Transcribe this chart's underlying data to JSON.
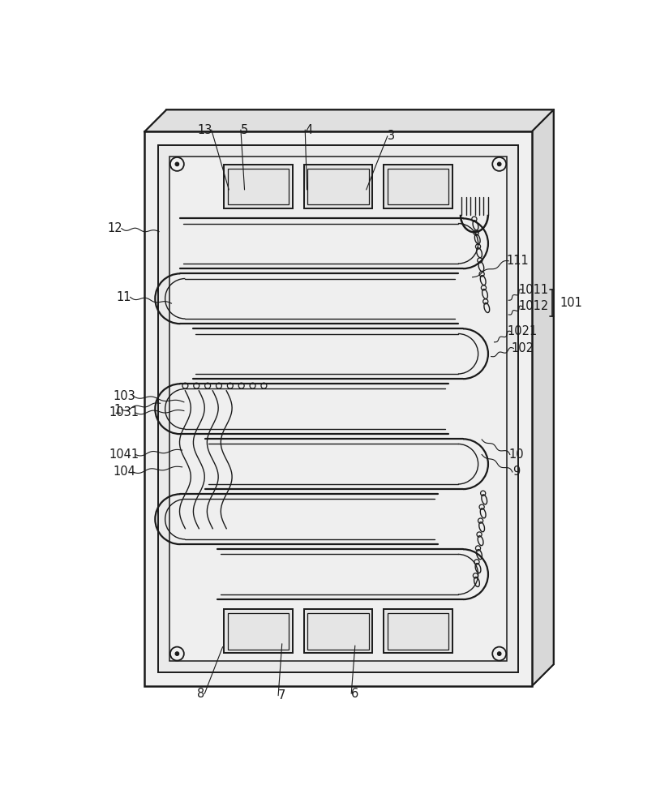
{
  "bg_color": "#ffffff",
  "lc": "#1a1a1a",
  "plate_face": "#f0f0f0",
  "plate_side_right": "#d0d0d0",
  "plate_side_top": "#e0e0e0",
  "slot_fill": "#e2e2e2",
  "annotations": [
    [
      "1",
      52,
      500,
      120,
      490,
      true
    ],
    [
      "3",
      490,
      62,
      450,
      148,
      false
    ],
    [
      "4",
      358,
      52,
      355,
      148,
      false
    ],
    [
      "5",
      255,
      52,
      255,
      148,
      false
    ],
    [
      "6",
      432,
      955,
      432,
      878,
      false
    ],
    [
      "7",
      315,
      958,
      315,
      875,
      false
    ],
    [
      "8",
      185,
      955,
      220,
      880,
      false
    ],
    [
      "9",
      690,
      600,
      635,
      572,
      true
    ],
    [
      "10",
      690,
      572,
      635,
      548,
      true
    ],
    [
      "11",
      62,
      320,
      138,
      330,
      true
    ],
    [
      "12",
      48,
      210,
      118,
      215,
      true
    ],
    [
      "13",
      192,
      52,
      230,
      148,
      false
    ],
    [
      "1011",
      718,
      308,
      678,
      325,
      true
    ],
    [
      "1012",
      718,
      335,
      678,
      348,
      true
    ],
    [
      "1021",
      700,
      375,
      655,
      392,
      true
    ],
    [
      "102",
      700,
      402,
      650,
      415,
      true
    ],
    [
      "103",
      62,
      478,
      158,
      488,
      true
    ],
    [
      "1031",
      62,
      505,
      158,
      502,
      true
    ],
    [
      "1041",
      62,
      572,
      155,
      565,
      true
    ],
    [
      "104",
      62,
      600,
      155,
      592,
      true
    ],
    [
      "111",
      692,
      262,
      620,
      288,
      true
    ]
  ],
  "brace_101": [
    748,
    308,
    350,
    760,
    329
  ]
}
